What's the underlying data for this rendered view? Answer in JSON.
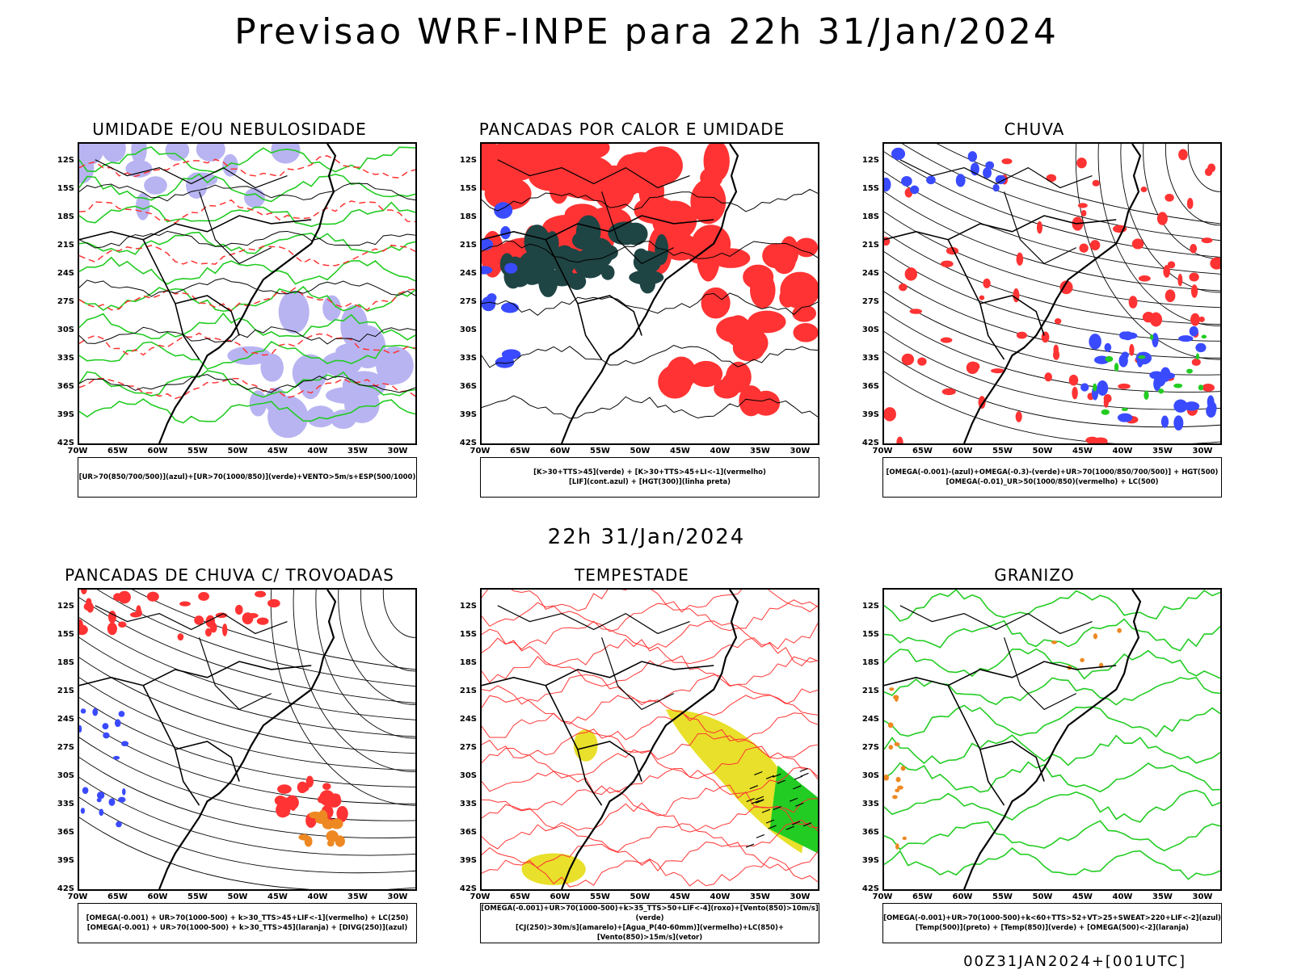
{
  "main_title": "Previsao WRF-INPE  para 22h 31/Jan/2024",
  "mid_title": "22h 31/Jan/2024",
  "footer": "00Z31JAN2024+[001UTC]",
  "lat_labels": [
    "12S",
    "15S",
    "18S",
    "21S",
    "24S",
    "27S",
    "30S",
    "33S",
    "36S",
    "39S",
    "42S"
  ],
  "lon_labels": [
    "70W",
    "65W",
    "60W",
    "55W",
    "50W",
    "45W",
    "40W",
    "35W",
    "30W"
  ],
  "colors": {
    "blue": "#3a4bff",
    "green": "#22cc22",
    "red": "#ff3333",
    "dark": "#1f4444",
    "lavender": "#b8b4f2",
    "yellow": "#e8e02a",
    "orange": "#ee8822"
  },
  "panels": [
    {
      "title": "UMIDADE E/OU NEBULOSIDADE",
      "legend": [
        "[UR>70(850/700/500)](azul)+[UR>70(1000/850)](verde)+VENTO>5m/s+ESP(500/1000)"
      ]
    },
    {
      "title": "PANCADAS POR CALOR E UMIDADE",
      "legend": [
        "[K>30+TTS>45](verde) + [K>30+TTS>45+LI<-1](vermelho)",
        "[LIF](cont.azul) + [HGT(300)](linha preta)"
      ]
    },
    {
      "title": "CHUVA",
      "legend": [
        "[OMEGA(-0.001)-(azul)+OMEGA(-0.3)-(verde)+UR>70(1000/850/700/500)] + HGT(500)",
        "[OMEGA(-0.01)_UR>50(1000/850)(vermelho) + LC(500)"
      ]
    },
    {
      "title": "PANCADAS DE CHUVA C/ TROVOADAS",
      "legend": [
        "[OMEGA(-0.001) + UR>70(1000-500) + k>30_TTS>45+LIF<-1](vermelho) + LC(250)",
        "[OMEGA(-0.001) + UR>70(1000-500) + k>30_TTS>45](laranja) + [DIVG(250)](azul)"
      ]
    },
    {
      "title": "TEMPESTADE",
      "legend": [
        "[OMEGA(-0.001)+UR>70(1000-500)+k>35_TTS>50+LIF<-4](roxo)+[Vento(850)>10m/s](verde)",
        "[CJ(250)>30m/s](amarelo)+[Agua_P(40-60mm)](vermelho)+LC(850)+[Vento(850)>15m/s](vetor)"
      ]
    },
    {
      "title": "GRANIZO",
      "legend": [
        "[OMEGA(-0.001)+UR>70(1000-500)+k<60+TTS>52+VT>25+SWEAT>220+LIF<-2](azul)",
        "[Temp(500)](preto) + [Temp(850)](verde) + [OMEGA(500)<-2](laranja)"
      ]
    }
  ]
}
